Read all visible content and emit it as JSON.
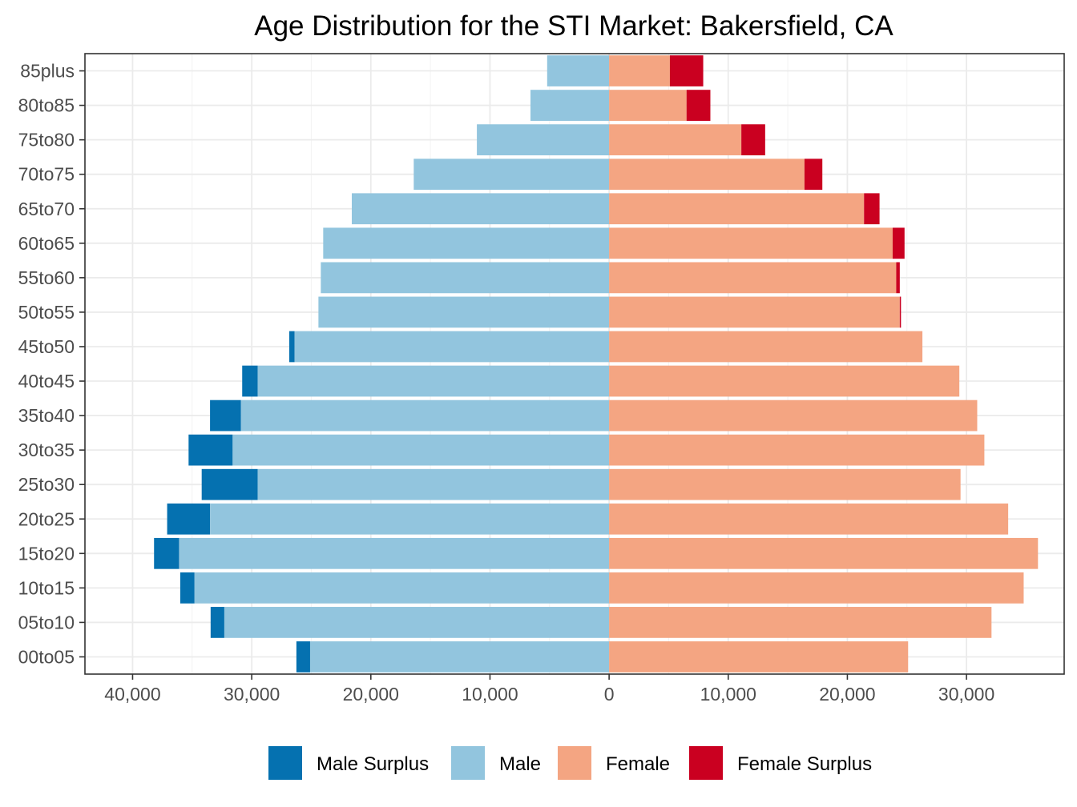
{
  "chart_data": {
    "type": "bar",
    "orientation": "horizontal",
    "layout": "population-pyramid",
    "title": "Age Distribution for the STI Market: Bakersfield, CA",
    "xlabel": "",
    "ylabel": "",
    "xlim": [
      -40000,
      40000
    ],
    "x_ticks": [
      -40000,
      -30000,
      -20000,
      -10000,
      0,
      10000,
      20000,
      30000
    ],
    "x_tick_labels": [
      "40,000",
      "30,000",
      "20,000",
      "10,000",
      "0",
      "10,000",
      "20,000",
      "30,000"
    ],
    "categories": [
      "00to05",
      "05to10",
      "10to15",
      "15to20",
      "20to25",
      "25to30",
      "30to35",
      "35to40",
      "40to45",
      "45to50",
      "50to55",
      "55to60",
      "60to65",
      "65to70",
      "70to75",
      "75to80",
      "80to85",
      "85plus"
    ],
    "grid": true,
    "legend_position": "bottom",
    "series": [
      {
        "name": "Male Surplus",
        "side": "left",
        "base": "Male",
        "color": "#0571b0",
        "values": [
          1150,
          1150,
          1200,
          2100,
          3600,
          4700,
          3700,
          2600,
          1300,
          450,
          0,
          0,
          0,
          0,
          0,
          0,
          0,
          0
        ]
      },
      {
        "name": "Male",
        "side": "left",
        "color": "#92c5de",
        "values": [
          25100,
          32300,
          34800,
          36100,
          33500,
          29500,
          31600,
          30900,
          29500,
          26400,
          24400,
          24200,
          24000,
          21600,
          16400,
          11100,
          6600,
          5200
        ]
      },
      {
        "name": "Female",
        "side": "right",
        "color": "#f4a582",
        "values": [
          25100,
          32100,
          34800,
          36000,
          33500,
          29500,
          31500,
          30900,
          29400,
          26300,
          24400,
          24100,
          23800,
          21400,
          16400,
          11100,
          6500,
          5100
        ]
      },
      {
        "name": "Female Surplus",
        "side": "right",
        "base": "Female",
        "color": "#ca0020",
        "values": [
          0,
          0,
          0,
          0,
          0,
          0,
          0,
          0,
          0,
          0,
          100,
          300,
          1000,
          1300,
          1500,
          2000,
          2000,
          2800
        ]
      }
    ]
  }
}
